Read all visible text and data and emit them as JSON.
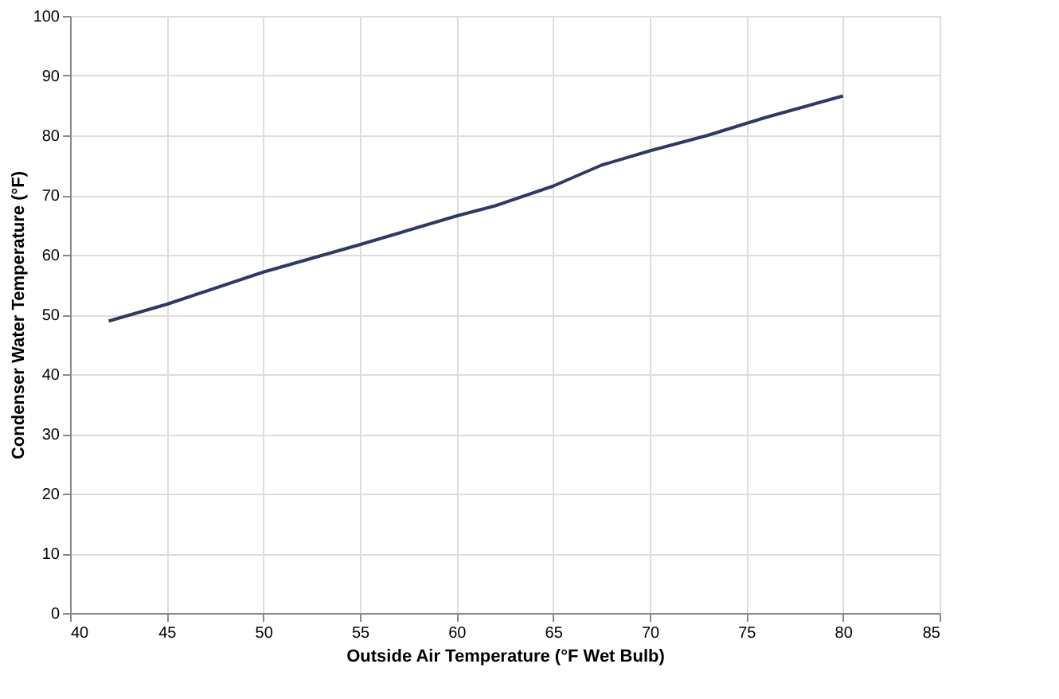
{
  "chart_data": {
    "type": "line",
    "xlabel": "Outside Air Temperature (°F Wet Bulb)",
    "ylabel": "Condenser Water Temperature (°F)",
    "x": [
      42,
      45,
      50,
      55,
      60,
      62,
      65,
      67.5,
      70,
      73,
      76,
      80
    ],
    "series": [
      {
        "color": "#2e3a63",
        "values": [
          48.9,
          51.7,
          57.1,
          61.7,
          66.5,
          68.2,
          71.5,
          75,
          77.4,
          80,
          83,
          86.6
        ]
      }
    ],
    "xlim": [
      40,
      85
    ],
    "xticks": [
      40,
      45,
      50,
      55,
      60,
      65,
      70,
      75,
      80,
      85
    ],
    "ylim": [
      0,
      100
    ],
    "yticks": [
      0,
      10,
      20,
      30,
      40,
      50,
      60,
      70,
      80,
      90,
      100
    ],
    "grid": true,
    "marker": "none",
    "line_style": "solid",
    "legend": false
  }
}
